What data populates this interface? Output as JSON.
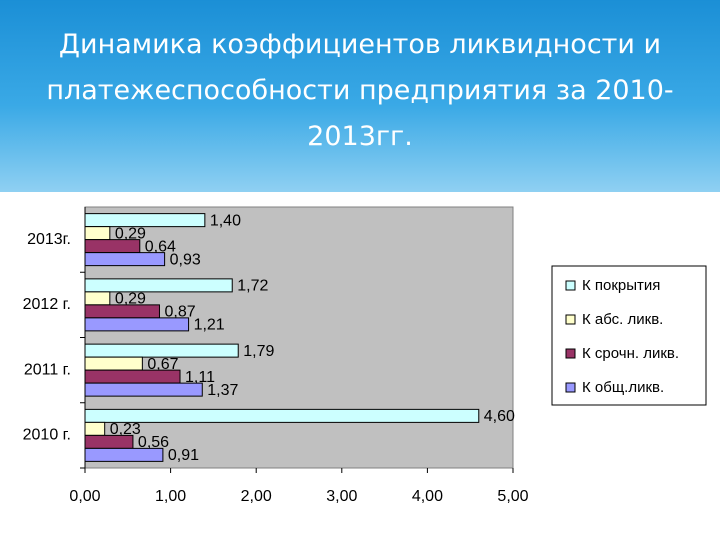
{
  "chart_data": {
    "type": "bar",
    "orientation": "horizontal",
    "title": "Динамика коэффициентов ликвидности и платежеспособности предприятия за 2010-2013гг.",
    "categories": [
      "2013г.",
      "2012 г.",
      "2011 г.",
      "2010 г."
    ],
    "series": [
      {
        "name": "К покрытия",
        "color": "#ccffff",
        "values": [
          1.4,
          1.72,
          1.79,
          4.6
        ],
        "value_labels": [
          "1,40",
          "1,72",
          "1,79",
          "4,60"
        ]
      },
      {
        "name": "К абс. ликв.",
        "color": "#ffffcc",
        "values": [
          0.29,
          0.29,
          0.67,
          0.23
        ],
        "value_labels": [
          "0,29",
          "0,29",
          "0,67",
          "0,23"
        ]
      },
      {
        "name": "К срочн. ликв.",
        "color": "#993366",
        "values": [
          0.64,
          0.87,
          1.11,
          0.56
        ],
        "value_labels": [
          "0,64",
          "0,87",
          "1,11",
          "0,56"
        ]
      },
      {
        "name": "К общ.ликв.",
        "color": "#9999ff",
        "values": [
          0.93,
          1.21,
          1.37,
          0.91
        ],
        "value_labels": [
          "0,93",
          "1,21",
          "1,37",
          "0,91"
        ]
      }
    ],
    "xlim": [
      0,
      5
    ],
    "xticks": [
      {
        "value": 0,
        "label": "0,00"
      },
      {
        "value": 1,
        "label": "1,00"
      },
      {
        "value": 2,
        "label": "2,00"
      },
      {
        "value": 3,
        "label": "3,00"
      },
      {
        "value": 4,
        "label": "4,00"
      },
      {
        "value": 5,
        "label": "5,00"
      }
    ],
    "plot_background": "#c0c0c0",
    "legend": "right"
  }
}
